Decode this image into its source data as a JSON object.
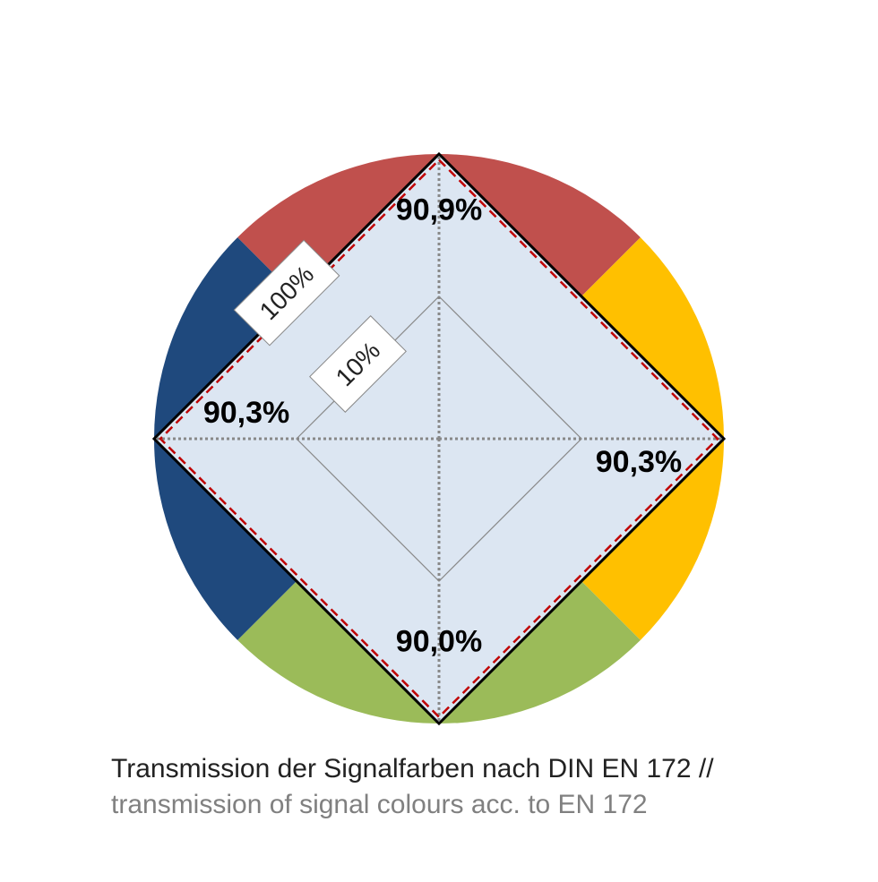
{
  "chart_data": {
    "type": "radar",
    "rscale": "log",
    "title": "Transmission der Signalfarben nach DIN EN 172 //",
    "subtitle": "transmission of signal colours acc. to EN 172",
    "categories": [
      null,
      null,
      null,
      null
    ],
    "category_colors": [
      "#c0504d",
      "#ffc000",
      "#9bbb59",
      "#1f497d"
    ],
    "rlim": [
      1,
      100
    ],
    "rticks": [
      {
        "value": 10,
        "label": "10%"
      },
      {
        "value": 100,
        "label": "100%"
      }
    ],
    "series": [
      {
        "color": "#c00000",
        "values": [
          90.9,
          90.3,
          90.0,
          90.3
        ],
        "value_labels": [
          "90,9%",
          "90,3%",
          "90,0%",
          "90,3%"
        ]
      }
    ]
  }
}
